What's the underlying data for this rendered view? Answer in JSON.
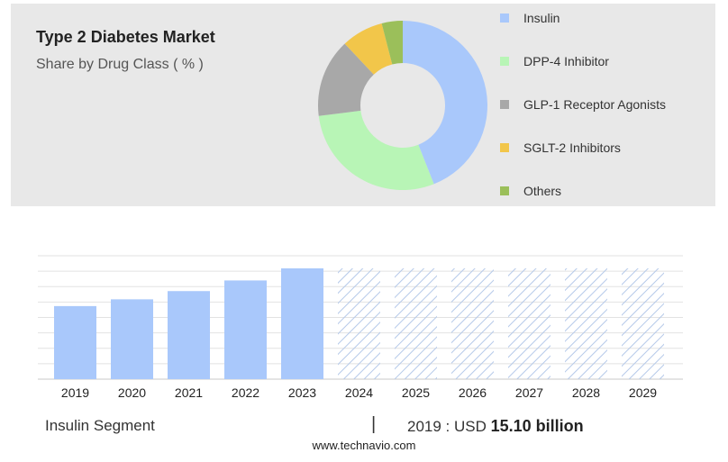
{
  "header": {
    "title": "Type 2 Diabetes Market",
    "subtitle": "Share by Drug Class ( % )"
  },
  "colors": {
    "insulin": "#a9c8fb",
    "dpp4": "#b8f5b6",
    "glp1": "#a8a8a8",
    "sglt2": "#f2c64a",
    "others": "#9bbf5a",
    "forecast_stroke": "#b5c9e9"
  },
  "chart_data": [
    {
      "type": "pie",
      "donut": true,
      "title": "Share by Drug Class ( % )",
      "categories": [
        "Insulin",
        "DPP-4 Inhibitor",
        "GLP-1 Receptor Agonists",
        "SGLT-2 Inhibitors",
        "Others"
      ],
      "values": [
        44,
        29,
        15,
        8,
        4
      ],
      "legend": "right"
    },
    {
      "type": "bar",
      "title": "Insulin Segment",
      "categories": [
        "2019",
        "2020",
        "2021",
        "2022",
        "2023",
        "2024",
        "2025",
        "2026",
        "2027",
        "2028",
        "2029"
      ],
      "values": [
        15.1,
        16.5,
        18.2,
        20.4,
        22.9,
        22.9,
        22.9,
        22.9,
        22.9,
        22.9,
        22.9
      ],
      "forecast_from": "2024",
      "ylim": [
        0,
        25.5
      ],
      "grid": true
    }
  ],
  "footer": {
    "segment_label": "Insulin Segment",
    "separator": "|",
    "value_prefix": "2019 : USD",
    "value": "15.10 billion",
    "source": "www.technavio.com"
  }
}
